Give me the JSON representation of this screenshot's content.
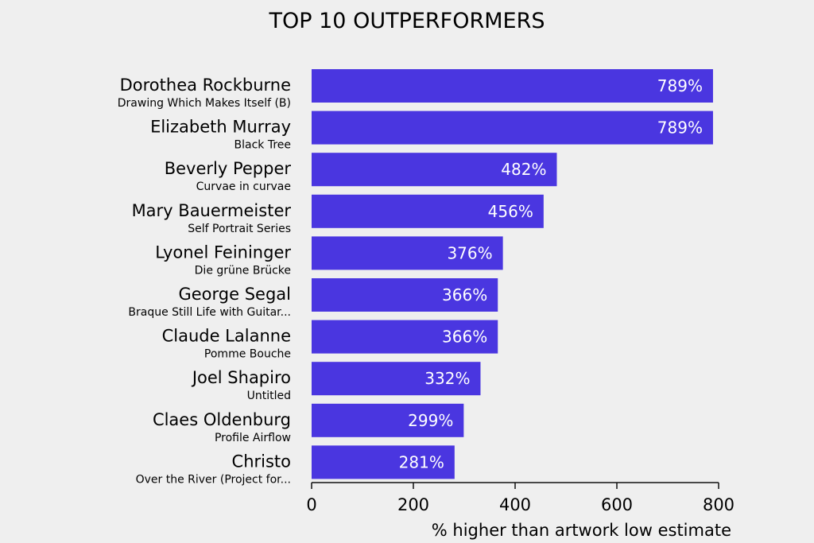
{
  "chart_data": {
    "type": "bar",
    "orientation": "horizontal",
    "title": "TOP 10 OUTPERFORMERS",
    "xlabel": "% higher than artwork low estimate",
    "ylabel": "",
    "xlim": [
      0,
      800
    ],
    "xticks": [
      0,
      200,
      400,
      600,
      800
    ],
    "grid": false,
    "bar_color": "#4a36e0",
    "value_suffix": "%",
    "categories": [
      {
        "artist": "Dorothea Rockburne",
        "artwork": "Drawing Which Makes Itself (B)"
      },
      {
        "artist": "Elizabeth Murray",
        "artwork": "Black Tree"
      },
      {
        "artist": "Beverly Pepper",
        "artwork": "Curvae in curvae"
      },
      {
        "artist": "Mary Bauermeister",
        "artwork": "Self Portrait Series"
      },
      {
        "artist": "Lyonel Feininger",
        "artwork": "Die grüne Brücke"
      },
      {
        "artist": "George Segal",
        "artwork": "Braque Still Life with Guitar..."
      },
      {
        "artist": "Claude Lalanne",
        "artwork": "Pomme Bouche"
      },
      {
        "artist": "Joel Shapiro",
        "artwork": "Untitled"
      },
      {
        "artist": "Claes Oldenburg",
        "artwork": "Profile Airflow"
      },
      {
        "artist": "Christo",
        "artwork": "Over the River (Project for..."
      }
    ],
    "values": [
      789,
      789,
      482,
      456,
      376,
      366,
      366,
      332,
      299,
      281
    ]
  }
}
